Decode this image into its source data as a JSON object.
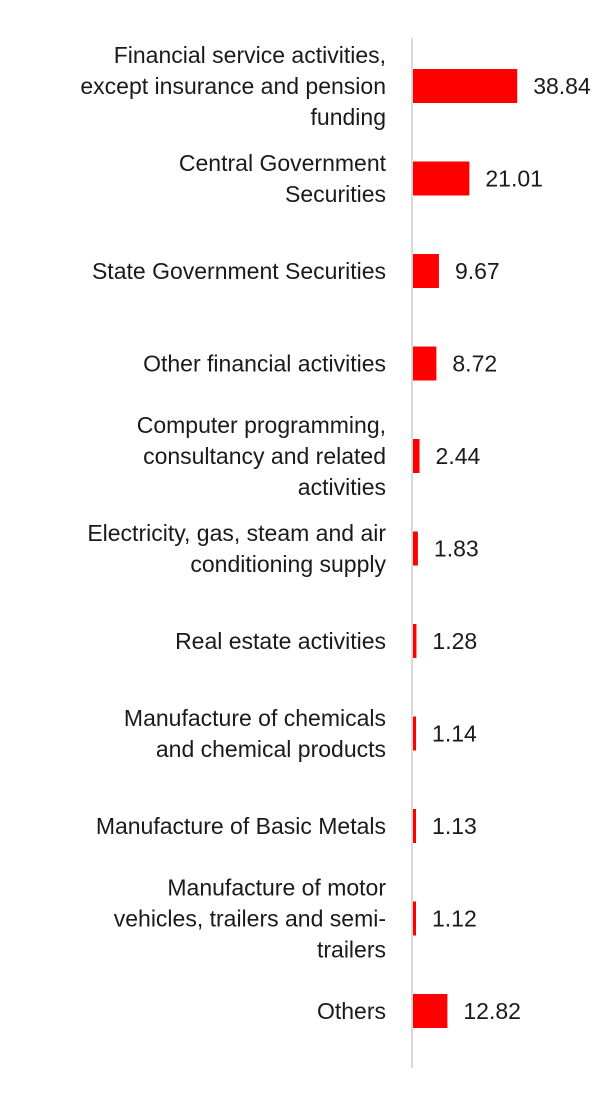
{
  "chart_data": {
    "type": "bar",
    "orientation": "horizontal",
    "title": "",
    "xlabel": "",
    "ylabel": "",
    "categories": [
      "Financial service activities, except insurance and pension funding",
      "Central Government Securities",
      "State Government Securities",
      "Other financial activities",
      "Computer programming, consultancy and related activities",
      "Electricity, gas, steam and air conditioning supply",
      "Real estate activities",
      "Manufacture of chemicals and chemical products",
      "Manufacture of Basic Metals",
      "Manufacture of motor vehicles, trailers and semi-trailers",
      "Others"
    ],
    "category_lines": [
      [
        "Financial service activities,",
        "except insurance and pension",
        "funding"
      ],
      [
        "Central Government",
        "Securities"
      ],
      [
        "State Government Securities"
      ],
      [
        "Other financial activities"
      ],
      [
        "Computer programming,",
        "consultancy and related",
        "activities"
      ],
      [
        "Electricity, gas, steam and air",
        "conditioning supply"
      ],
      [
        "Real estate activities"
      ],
      [
        "Manufacture of chemicals",
        "and chemical products"
      ],
      [
        "Manufacture of Basic Metals"
      ],
      [
        "Manufacture of motor",
        "vehicles, trailers and semi-",
        "trailers"
      ],
      [
        "Others"
      ]
    ],
    "values": [
      38.84,
      21.01,
      9.67,
      8.72,
      2.44,
      1.83,
      1.28,
      1.14,
      1.13,
      1.12,
      12.82
    ],
    "value_labels": [
      "38.84",
      "21.01",
      "9.67",
      "8.72",
      "2.44",
      "1.83",
      "1.28",
      "1.14",
      "1.13",
      "1.12",
      "12.82"
    ],
    "xlim": [
      0,
      41
    ],
    "grid": false,
    "legend": "none",
    "colors": {
      "bar": "#ff0000",
      "axis": "#d9d9d9",
      "text": "#1a1a1a"
    }
  }
}
